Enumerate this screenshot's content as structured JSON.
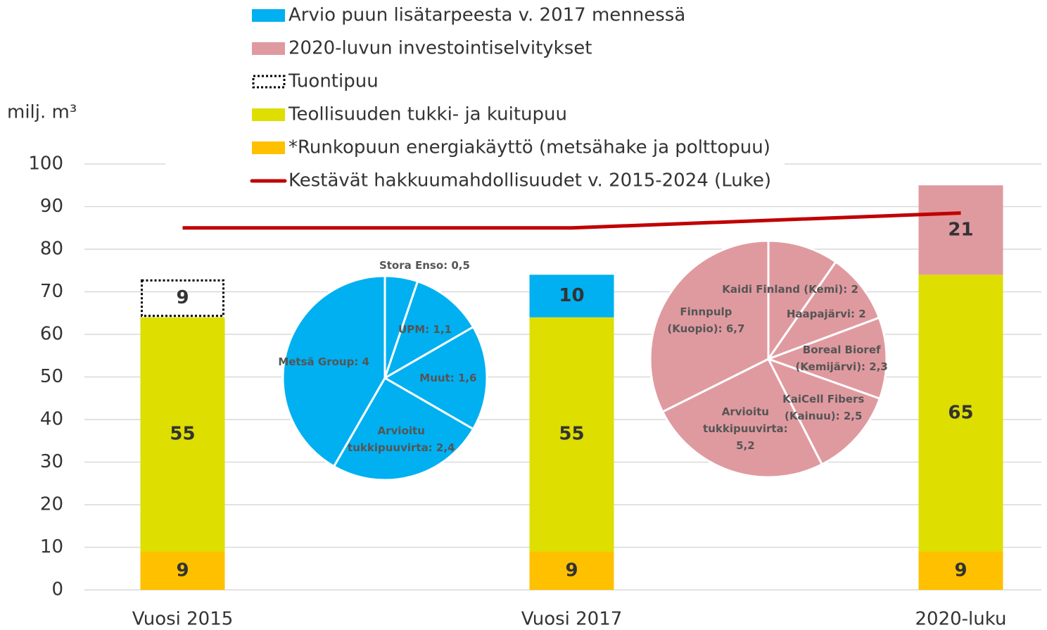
{
  "chart_data": [
    {
      "type": "bar",
      "stacked": true,
      "y_label": "milj. m³",
      "categories": [
        "Vuosi 2015",
        "Vuosi 2017",
        "2020-luku"
      ],
      "series": [
        {
          "name": "Arvio puun lisätarpeesta v. 2017 mennessä",
          "color": "#00b0f0",
          "values": [
            null,
            10,
            null
          ]
        },
        {
          "name": "2020-luvun investointiselvitykset",
          "color": "#df9aa0",
          "values": [
            null,
            null,
            21
          ]
        },
        {
          "name": "Tuontipuu",
          "color": "#000000",
          "style": "dotted",
          "values": [
            9,
            null,
            null
          ]
        },
        {
          "name": "Teollisuuden tukki- ja kuitupuu",
          "color": "#dede00",
          "values": [
            55,
            55,
            65
          ]
        },
        {
          "name": "*Runkopuun energiakäyttö (metsähake ja polttopuu)",
          "color": "#ffc000",
          "values": [
            9,
            9,
            9
          ]
        },
        {
          "name": "Kestävät hakkuumahdollisuudet v. 2015-2024 (Luke)",
          "type": "line",
          "color": "#c00000",
          "values": [
            85,
            85,
            88.5
          ]
        }
      ],
      "ylim": [
        0,
        100
      ],
      "yticks": [
        0,
        10,
        20,
        30,
        40,
        50,
        60,
        70,
        80,
        90,
        100
      ],
      "grid": true
    },
    {
      "type": "pie",
      "color": "#00b0f0",
      "labels": [
        "Stora Enso: 0,5",
        "UPM: 1,1",
        "Muut: 1,6",
        "Arvioitu\ntukkipuuvirta: 2,4",
        "Metsä Group: 4"
      ],
      "values": [
        0.5,
        1.1,
        1.6,
        2.4,
        4
      ]
    },
    {
      "type": "pie",
      "color": "#df9aa0",
      "labels": [
        "Kaidi Finland (Kemi): 2",
        "Haapajärvi: 2",
        "Boreal Bioref\n(Kemijärvi): 2,3",
        "KaiCell Fibers\n(Kainuu): 2,5",
        "Arvioitu\ntukkipuuvirta:\n5,2",
        "Finnpulp\n(Kuopio): 6,7"
      ],
      "values": [
        2,
        2,
        2.3,
        2.5,
        5.2,
        6.7
      ]
    }
  ]
}
